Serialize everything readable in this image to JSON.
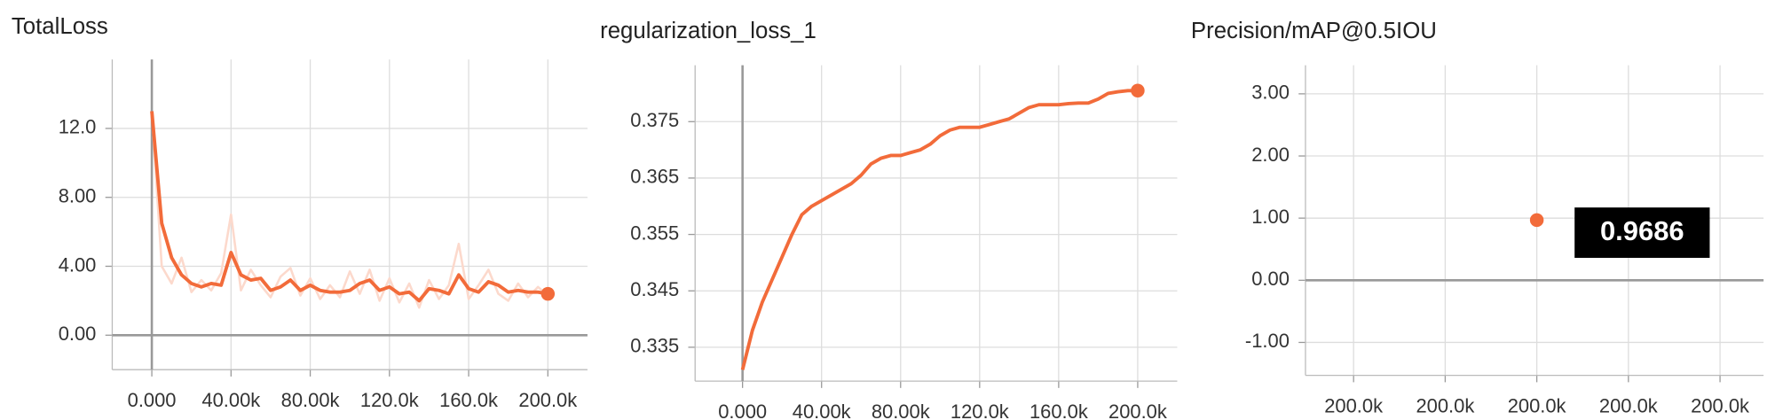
{
  "chart_data": [
    {
      "type": "line",
      "title": "TotalLoss",
      "x": [
        0,
        5000,
        10000,
        15000,
        20000,
        25000,
        30000,
        35000,
        40000,
        45000,
        50000,
        55000,
        60000,
        65000,
        70000,
        75000,
        80000,
        85000,
        90000,
        95000,
        100000,
        105000,
        110000,
        115000,
        120000,
        125000,
        130000,
        135000,
        140000,
        145000,
        150000,
        155000,
        160000,
        165000,
        170000,
        175000,
        180000,
        185000,
        190000,
        195000,
        200000
      ],
      "series": [
        {
          "color": "#fcd9cc",
          "values": [
            13,
            4.0,
            3.0,
            4.5,
            2.5,
            3.2,
            2.6,
            3.6,
            7.0,
            2.6,
            3.8,
            2.9,
            2.2,
            3.4,
            3.9,
            2.3,
            3.3,
            2.1,
            2.9,
            2.2,
            3.7,
            2.4,
            3.8,
            2.0,
            3.3,
            1.9,
            3.0,
            1.6,
            3.2,
            2.1,
            2.9,
            5.3,
            2.1,
            2.9,
            3.8,
            2.4,
            2.0,
            3.0,
            2.2,
            2.8,
            2.3
          ]
        },
        {
          "color": "#f26b3a",
          "values": [
            13,
            6.5,
            4.5,
            3.5,
            3.0,
            2.8,
            3.0,
            2.9,
            4.8,
            3.5,
            3.2,
            3.3,
            2.6,
            2.8,
            3.2,
            2.6,
            2.9,
            2.6,
            2.5,
            2.5,
            2.6,
            3.0,
            3.2,
            2.6,
            2.8,
            2.4,
            2.5,
            2.0,
            2.7,
            2.6,
            2.4,
            3.5,
            2.7,
            2.5,
            3.1,
            2.9,
            2.5,
            2.6,
            2.5,
            2.5,
            2.4
          ]
        }
      ],
      "xlim": [
        -20000,
        220000
      ],
      "ylim": [
        -2,
        16
      ],
      "xticks": [
        {
          "value": 0,
          "label": "0.000"
        },
        {
          "value": 40000,
          "label": "40.00k"
        },
        {
          "value": 80000,
          "label": "80.00k"
        },
        {
          "value": 120000,
          "label": "120.0k"
        },
        {
          "value": 160000,
          "label": "160.0k"
        },
        {
          "value": 200000,
          "label": "200.0k"
        }
      ],
      "yticks": [
        {
          "value": 0,
          "label": "0.00"
        },
        {
          "value": 4,
          "label": "4.00"
        },
        {
          "value": 8,
          "label": "8.00"
        },
        {
          "value": 12,
          "label": "12.0"
        }
      ],
      "grid": true
    },
    {
      "type": "line",
      "title": "regularization_loss_1",
      "x": [
        0,
        5000,
        10000,
        15000,
        20000,
        25000,
        30000,
        35000,
        40000,
        45000,
        50000,
        55000,
        60000,
        65000,
        70000,
        75000,
        80000,
        85000,
        90000,
        95000,
        100000,
        105000,
        110000,
        115000,
        120000,
        125000,
        130000,
        135000,
        140000,
        145000,
        150000,
        155000,
        160000,
        165000,
        170000,
        175000,
        180000,
        185000,
        190000,
        195000,
        200000
      ],
      "series": [
        {
          "color": "#f26b3a",
          "values": [
            0.331,
            0.338,
            0.343,
            0.347,
            0.351,
            0.355,
            0.3585,
            0.36,
            0.361,
            0.362,
            0.363,
            0.364,
            0.3655,
            0.3675,
            0.3685,
            0.369,
            0.369,
            0.3695,
            0.37,
            0.371,
            0.3725,
            0.3735,
            0.374,
            0.374,
            0.374,
            0.3745,
            0.375,
            0.3755,
            0.3765,
            0.3775,
            0.378,
            0.378,
            0.378,
            0.3782,
            0.3783,
            0.3783,
            0.379,
            0.38,
            0.3803,
            0.3805,
            0.3805
          ]
        }
      ],
      "xlim": [
        -24000,
        220000
      ],
      "ylim": [
        0.329,
        0.385
      ],
      "xticks": [
        {
          "value": 0,
          "label": "0.000"
        },
        {
          "value": 40000,
          "label": "40.00k"
        },
        {
          "value": 80000,
          "label": "80.00k"
        },
        {
          "value": 120000,
          "label": "120.0k"
        },
        {
          "value": 160000,
          "label": "160.0k"
        },
        {
          "value": 200000,
          "label": "200.0k"
        }
      ],
      "yticks": [
        0.335,
        0.345,
        0.355,
        0.365,
        0.375
      ],
      "grid": true
    },
    {
      "type": "line",
      "title": "Precision/mAP@0.5IOU",
      "x": [
        200000
      ],
      "series": [
        {
          "color": "#f26b3a",
          "values": [
            0.9686
          ],
          "value_labels": [
            "0.9686"
          ]
        }
      ],
      "xlim": [
        199997.475,
        200002.475
      ],
      "ylim": [
        -1.53,
        3.46
      ],
      "xticks": [
        {
          "value": 199998,
          "label": "200.0k"
        },
        {
          "value": 199999,
          "label": "200.0k"
        },
        {
          "value": 200000,
          "label": "200.0k"
        },
        {
          "value": 200001,
          "label": "200.0k"
        },
        {
          "value": 200002,
          "label": "200.0k"
        }
      ],
      "yticks": [
        {
          "value": -1,
          "label": "-1.00"
        },
        {
          "value": 0,
          "label": "0.00"
        },
        {
          "value": 1,
          "label": "1.00"
        },
        {
          "value": 2,
          "label": "2.00"
        },
        {
          "value": 3,
          "label": "3.00"
        }
      ],
      "grid": true
    }
  ]
}
